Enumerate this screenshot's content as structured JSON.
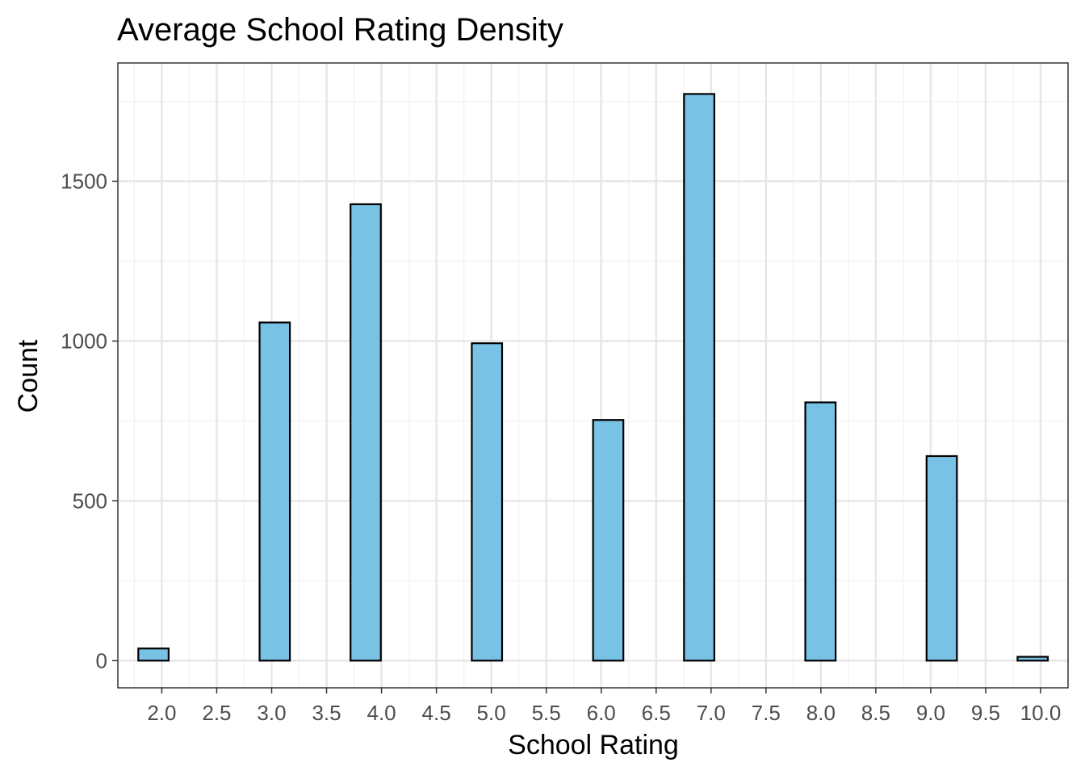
{
  "chart_data": {
    "type": "bar",
    "title": "Average School Rating Density",
    "xlabel": "School Rating",
    "ylabel": "Count",
    "x_ticks": [
      "2.0",
      "2.5",
      "3.0",
      "3.5",
      "4.0",
      "4.5",
      "5.0",
      "5.5",
      "6.0",
      "6.5",
      "7.0",
      "7.5",
      "8.0",
      "8.5",
      "9.0",
      "9.5",
      "10.0"
    ],
    "y_ticks": [
      "0",
      "500",
      "1000",
      "1500"
    ],
    "xlim": [
      1.6,
      10.25
    ],
    "ylim": [
      -85,
      1870
    ],
    "bin_width": 0.276,
    "x": [
      1.924,
      2.2,
      2.476,
      2.752,
      3.028,
      3.304,
      3.58,
      3.856,
      4.132,
      4.408,
      4.684,
      4.96,
      5.236,
      5.512,
      5.788,
      6.064,
      6.34,
      6.616,
      6.892,
      7.168,
      7.444,
      7.72,
      7.996,
      8.272,
      8.548,
      8.824,
      9.1,
      9.376,
      9.652,
      9.928
    ],
    "values": [
      38,
      0,
      0,
      0,
      1058,
      0,
      0,
      1428,
      0,
      0,
      0,
      993,
      0,
      0,
      0,
      753,
      0,
      0,
      1773,
      0,
      0,
      0,
      808,
      0,
      0,
      0,
      640,
      0,
      0,
      12
    ],
    "grid": true,
    "colors": {
      "bar_fill": "#78C2E5",
      "bar_stroke": "#000000",
      "grid_major": "#E6E6E6",
      "grid_minor": "#F1F1F1",
      "panel_border": "#333333",
      "tick_text": "#4D4D4D"
    }
  }
}
